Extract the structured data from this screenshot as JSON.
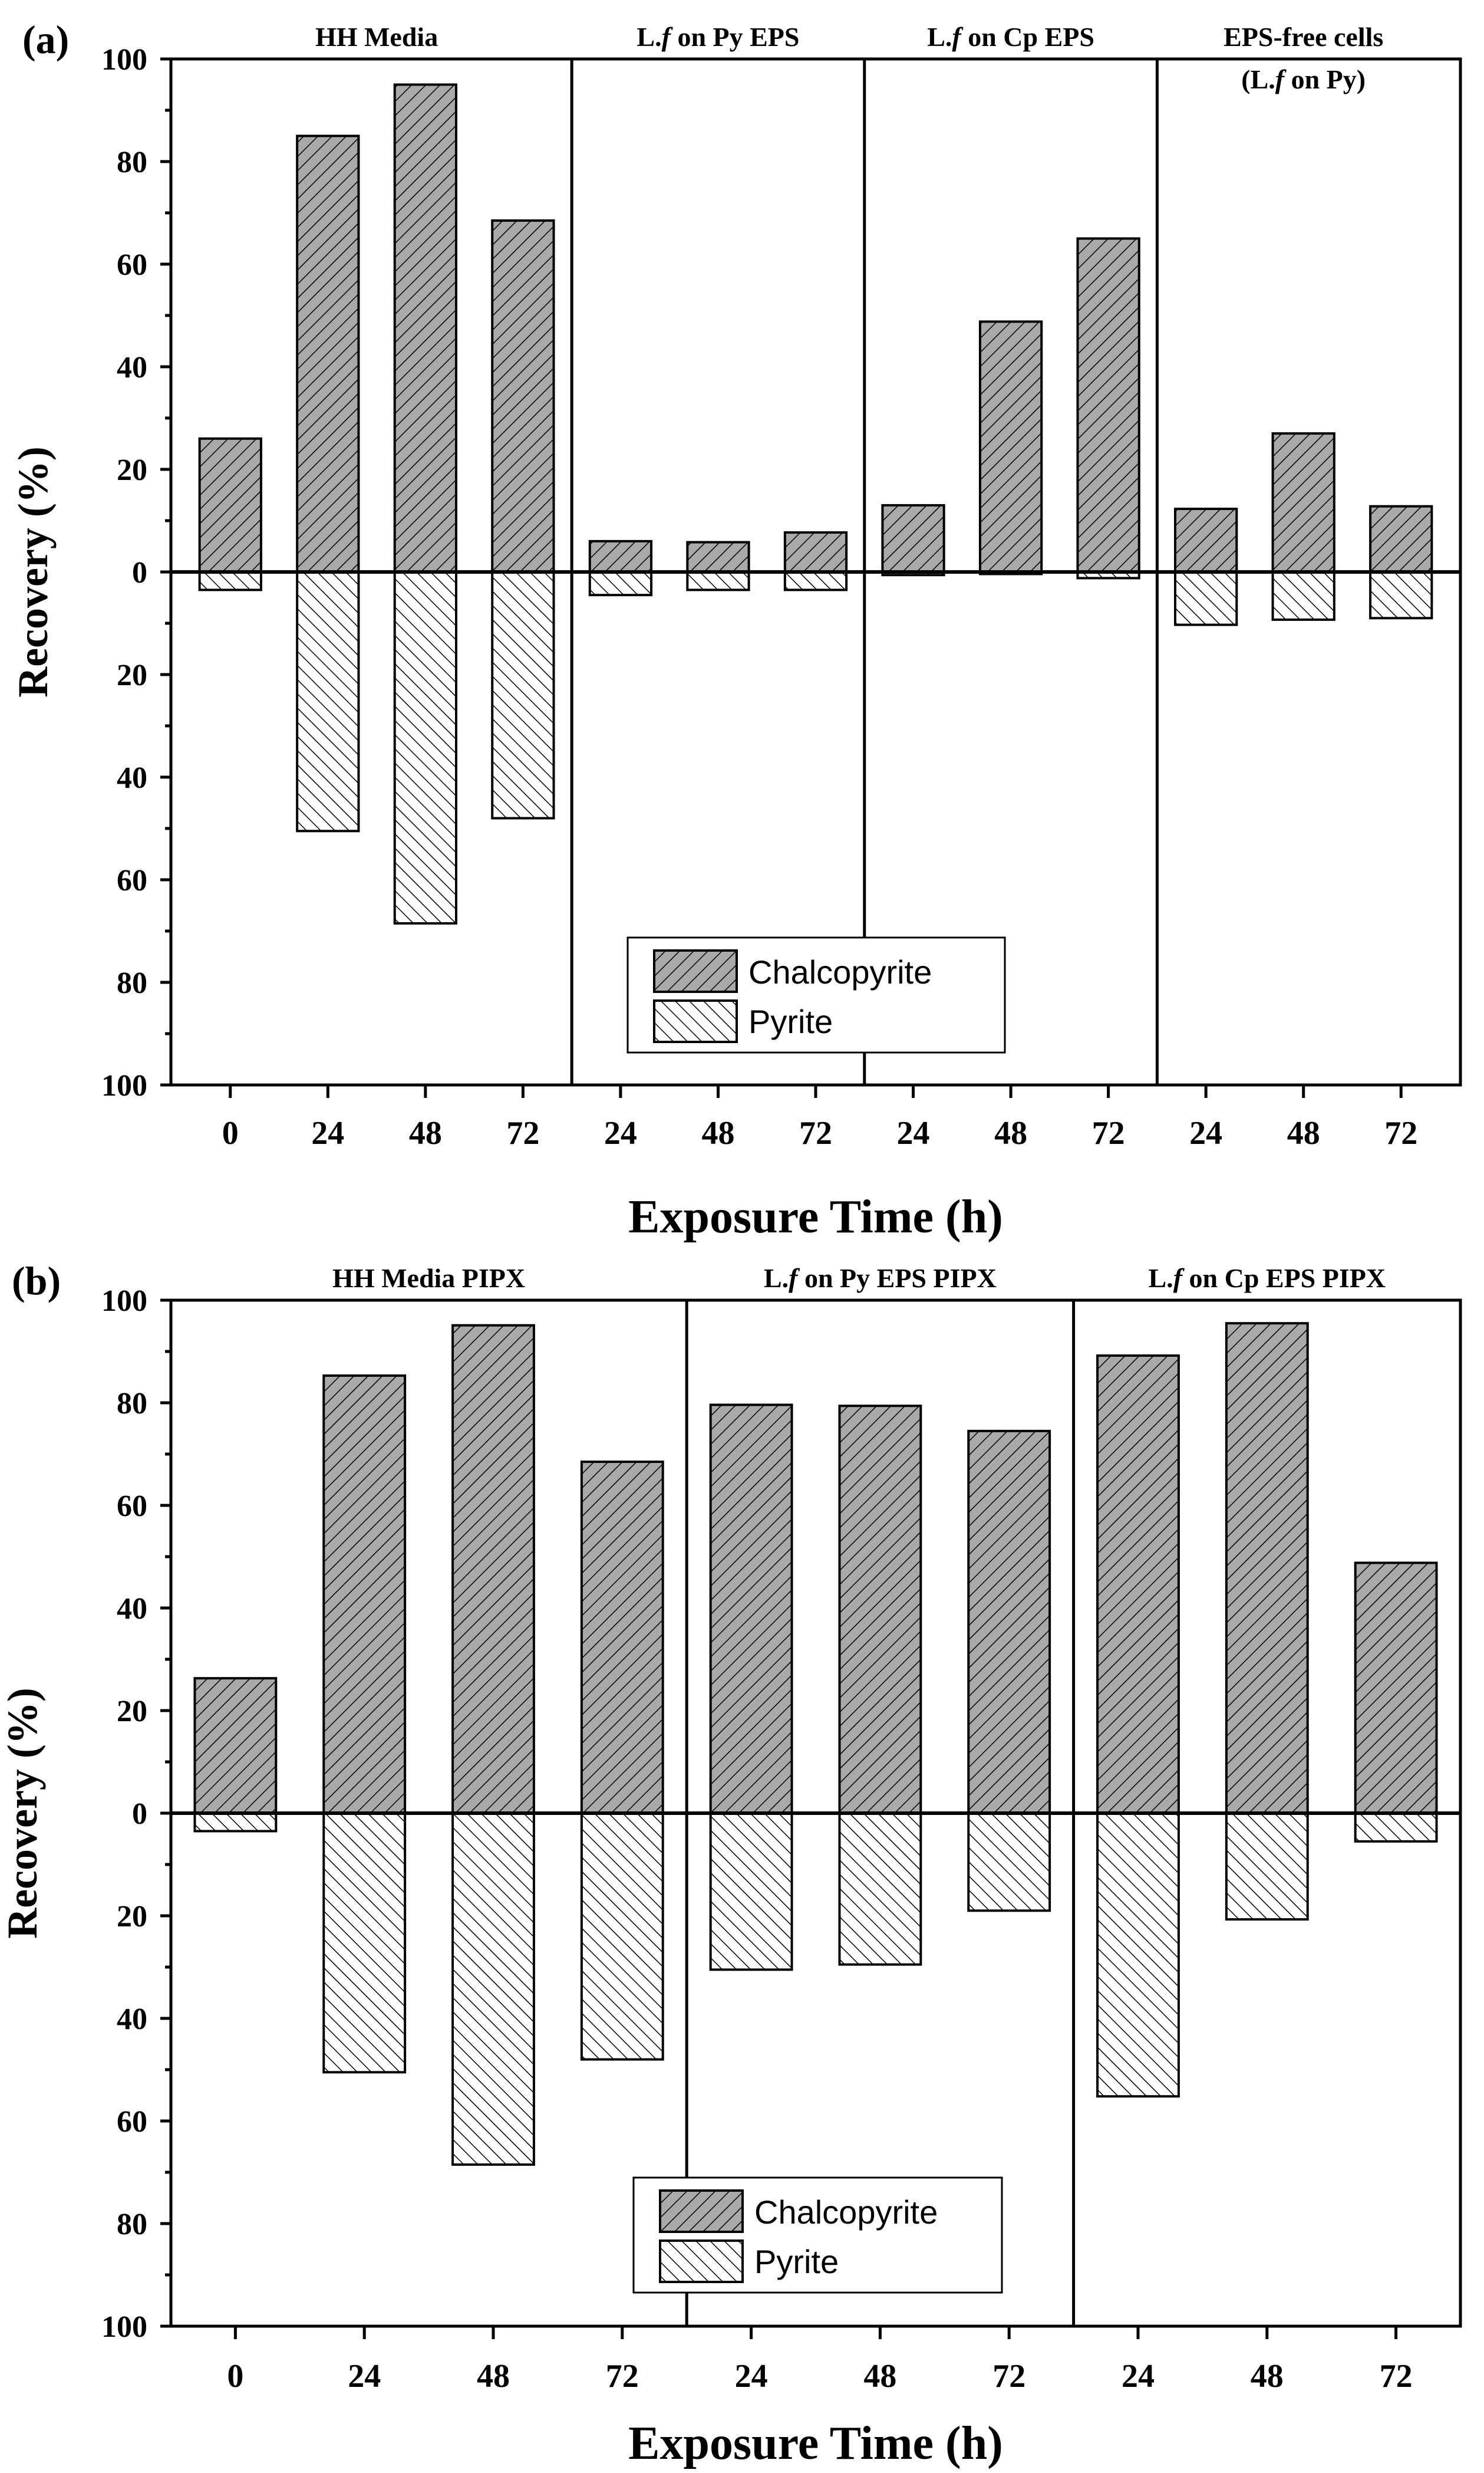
{
  "chart_data": [
    {
      "type": "bar",
      "panel_label": "(a)",
      "xlabel": "Exposure Time (h)",
      "ylabel": "Recovery (%)",
      "ylim_top": [
        0,
        100
      ],
      "ylim_bottom": [
        0,
        100
      ],
      "y_ticks_top": [
        "100",
        "80",
        "60",
        "40",
        "20",
        "0"
      ],
      "y_ticks_bottom": [
        "20",
        "40",
        "60",
        "80",
        "100"
      ],
      "legend": {
        "placement": "bottom-center",
        "chalcopyrite": "Chalcopyrite",
        "pyrite": "Pyrite"
      },
      "groups": [
        {
          "title": "HH Media",
          "categories": [
            "0",
            "24",
            "48",
            "72"
          ],
          "chalcopyrite": [
            26,
            85,
            95,
            68.5
          ],
          "pyrite": [
            3.5,
            50.5,
            68.5,
            48
          ]
        },
        {
          "title": "L.f on Py EPS",
          "categories": [
            "24",
            "48",
            "72"
          ],
          "chalcopyrite": [
            6,
            5.8,
            7.7
          ],
          "pyrite": [
            4.5,
            3.5,
            3.5
          ]
        },
        {
          "title": "L.f on Cp EPS",
          "categories": [
            "24",
            "48",
            "72"
          ],
          "chalcopyrite": [
            13,
            48.8,
            65
          ],
          "pyrite": [
            0.6,
            0.4,
            1.2
          ]
        },
        {
          "title": "EPS-free cells",
          "subtitle": "(L.f on Py)",
          "categories": [
            "24",
            "48",
            "72"
          ],
          "chalcopyrite": [
            12.3,
            27,
            12.8
          ],
          "pyrite": [
            10.3,
            9.3,
            9
          ]
        }
      ]
    },
    {
      "type": "bar",
      "panel_label": "(b)",
      "xlabel": "Exposure Time (h)",
      "ylabel": "Recovery (%)",
      "ylim_top": [
        0,
        100
      ],
      "ylim_bottom": [
        0,
        100
      ],
      "y_ticks_top": [
        "100",
        "80",
        "60",
        "40",
        "20",
        "0"
      ],
      "y_ticks_bottom": [
        "20",
        "40",
        "60",
        "80",
        "100"
      ],
      "legend": {
        "placement": "bottom-center",
        "chalcopyrite": "Chalcopyrite",
        "pyrite": "Pyrite"
      },
      "groups": [
        {
          "title": "HH Media PIPX",
          "categories": [
            "0",
            "24",
            "48",
            "72"
          ],
          "chalcopyrite": [
            26.3,
            85.3,
            95.1,
            68.5
          ],
          "pyrite": [
            3.5,
            50.5,
            68.5,
            48
          ]
        },
        {
          "title": "L.f on Py EPS PIPX",
          "categories": [
            "24",
            "48",
            "72"
          ],
          "chalcopyrite": [
            79.6,
            79.4,
            74.5
          ],
          "pyrite": [
            30.5,
            29.5,
            19
          ]
        },
        {
          "title": "L.f on Cp EPS PIPX",
          "categories": [
            "24",
            "48",
            "72"
          ],
          "chalcopyrite": [
            89.2,
            95.5,
            48.8
          ],
          "pyrite": [
            55.2,
            20.7,
            5.5
          ]
        }
      ]
    }
  ]
}
